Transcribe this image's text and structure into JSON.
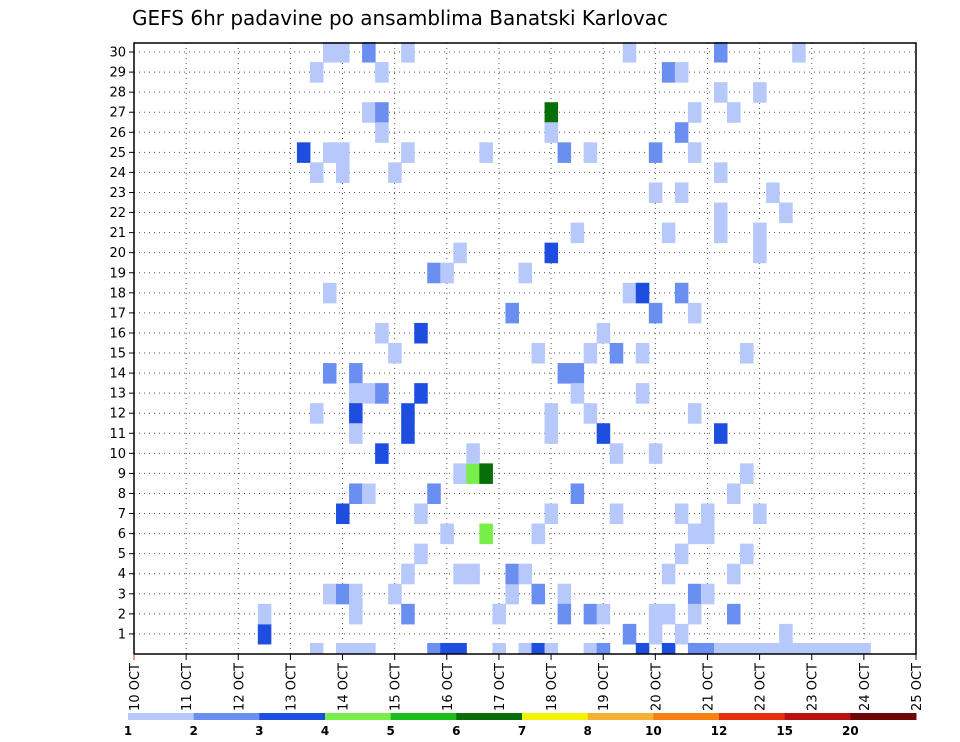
{
  "chart_data": {
    "type": "heatmap",
    "title": "GEFS 6hr padavine po ansamblima Banatski Karlovac",
    "xlabel": "",
    "ylabel": "",
    "x_ticks": [
      "10 OCT",
      "11 OCT",
      "12 OCT",
      "13 OCT",
      "14 OCT",
      "15 OCT",
      "16 OCT",
      "17 OCT",
      "18 OCT",
      "19 OCT",
      "20 OCT",
      "21 OCT",
      "22 OCT",
      "23 OCT",
      "24 OCT",
      "25 OCT"
    ],
    "xlim": [
      0,
      60
    ],
    "y_ticks": [
      1,
      2,
      3,
      4,
      5,
      6,
      7,
      8,
      9,
      10,
      11,
      12,
      13,
      14,
      15,
      16,
      17,
      18,
      19,
      20,
      21,
      22,
      23,
      24,
      25,
      26,
      27,
      28,
      29,
      30
    ],
    "ylim": [
      0,
      30
    ],
    "grid": true,
    "colorbar": {
      "position": "bottom",
      "labels": [
        "1",
        "2",
        "3",
        "4",
        "5",
        "6",
        "7",
        "8",
        "10",
        "12",
        "15",
        "20"
      ],
      "colors": [
        "#b7c8fa",
        "#6a8ff0",
        "#1e4ee0",
        "#78ee4a",
        "#18bf18",
        "#086e08",
        "#f4f400",
        "#f8b030",
        "#f88010",
        "#e83010",
        "#b81010",
        "#6e0606"
      ]
    },
    "cells": [
      {
        "t": 10,
        "m": 1,
        "c": 3
      },
      {
        "t": 10,
        "m": 2,
        "c": 1
      },
      {
        "t": 13,
        "m": 25,
        "c": 3
      },
      {
        "t": 14,
        "m": 29,
        "c": 1
      },
      {
        "t": 14,
        "m": 24,
        "c": 1
      },
      {
        "t": 14,
        "m": 12,
        "c": 1
      },
      {
        "t": 14,
        "m": -1,
        "c": 1
      },
      {
        "t": 15,
        "m": 30,
        "c": 1
      },
      {
        "t": 15,
        "m": 25,
        "c": 1
      },
      {
        "t": 15,
        "m": 18,
        "c": 1
      },
      {
        "t": 15,
        "m": 3,
        "c": 1
      },
      {
        "t": 15,
        "m": 14,
        "c": 2
      },
      {
        "t": 16,
        "m": 30,
        "c": 1
      },
      {
        "t": 16,
        "m": 25,
        "c": 1
      },
      {
        "t": 16,
        "m": 24,
        "c": 1
      },
      {
        "t": 16,
        "m": 3,
        "c": 2
      },
      {
        "t": 16,
        "m": -1,
        "c": 1
      },
      {
        "t": 16,
        "m": 7,
        "c": 3
      },
      {
        "t": 17,
        "m": 14,
        "c": 2
      },
      {
        "t": 17,
        "m": 13,
        "c": 1
      },
      {
        "t": 17,
        "m": 12,
        "c": 3
      },
      {
        "t": 17,
        "m": 11,
        "c": 1
      },
      {
        "t": 17,
        "m": 2,
        "c": 1
      },
      {
        "t": 17,
        "m": 3,
        "c": 1
      },
      {
        "t": 17,
        "m": -1,
        "c": 1
      },
      {
        "t": 17,
        "m": 8,
        "c": 2
      },
      {
        "t": 18,
        "m": 30,
        "c": 2
      },
      {
        "t": 18,
        "m": 27,
        "c": 1
      },
      {
        "t": 18,
        "m": 13,
        "c": 1
      },
      {
        "t": 18,
        "m": 8,
        "c": 1
      },
      {
        "t": 18,
        "m": -1,
        "c": 1
      },
      {
        "t": 19,
        "m": 29,
        "c": 1
      },
      {
        "t": 19,
        "m": 27,
        "c": 2
      },
      {
        "t": 19,
        "m": 16,
        "c": 1
      },
      {
        "t": 19,
        "m": 13,
        "c": 2
      },
      {
        "t": 19,
        "m": 10,
        "c": 3
      },
      {
        "t": 19,
        "m": 26,
        "c": 1
      },
      {
        "t": 20,
        "m": 24,
        "c": 1
      },
      {
        "t": 20,
        "m": 3,
        "c": 1
      },
      {
        "t": 20,
        "m": 15,
        "c": 1
      },
      {
        "t": 21,
        "m": 30,
        "c": 1
      },
      {
        "t": 21,
        "m": 25,
        "c": 1
      },
      {
        "t": 21,
        "m": 12,
        "c": 3
      },
      {
        "t": 21,
        "m": 11,
        "c": 3
      },
      {
        "t": 21,
        "m": 4,
        "c": 1
      },
      {
        "t": 21,
        "m": 2,
        "c": 2
      },
      {
        "t": 22,
        "m": 16,
        "c": 3
      },
      {
        "t": 22,
        "m": 13,
        "c": 3
      },
      {
        "t": 22,
        "m": 5,
        "c": 1
      },
      {
        "t": 22,
        "m": 7,
        "c": 1
      },
      {
        "t": 23,
        "m": 19,
        "c": 2
      },
      {
        "t": 23,
        "m": -1,
        "c": 2
      },
      {
        "t": 23,
        "m": 8,
        "c": 2
      },
      {
        "t": 24,
        "m": 19,
        "c": 1
      },
      {
        "t": 24,
        "m": 6,
        "c": 1
      },
      {
        "t": 24,
        "m": -1,
        "c": 3
      },
      {
        "t": 25,
        "m": 20,
        "c": 1
      },
      {
        "t": 25,
        "m": 4,
        "c": 1
      },
      {
        "t": 25,
        "m": -1,
        "c": 3
      },
      {
        "t": 25,
        "m": 9,
        "c": 1
      },
      {
        "t": 26,
        "m": 9,
        "c": 4
      },
      {
        "t": 26,
        "m": 4,
        "c": 1
      },
      {
        "t": 26,
        "m": 10,
        "c": 1
      },
      {
        "t": 27,
        "m": 6,
        "c": 4
      },
      {
        "t": 27,
        "m": 9,
        "c": 6
      },
      {
        "t": 27,
        "m": 25,
        "c": 1
      },
      {
        "t": 28,
        "m": 2,
        "c": 1
      },
      {
        "t": 28,
        "m": -1,
        "c": 1
      },
      {
        "t": 29,
        "m": 3,
        "c": 1
      },
      {
        "t": 29,
        "m": 4,
        "c": 2
      },
      {
        "t": 29,
        "m": 17,
        "c": 2
      },
      {
        "t": 30,
        "m": -1,
        "c": 1
      },
      {
        "t": 30,
        "m": 4,
        "c": 1
      },
      {
        "t": 30,
        "m": 19,
        "c": 1
      },
      {
        "t": 31,
        "m": -1,
        "c": 3
      },
      {
        "t": 31,
        "m": 3,
        "c": 2
      },
      {
        "t": 31,
        "m": 15,
        "c": 1
      },
      {
        "t": 31,
        "m": 6,
        "c": 1
      },
      {
        "t": 32,
        "m": 11,
        "c": 1
      },
      {
        "t": 32,
        "m": 12,
        "c": 1
      },
      {
        "t": 32,
        "m": 20,
        "c": 3
      },
      {
        "t": 32,
        "m": -1,
        "c": 1
      },
      {
        "t": 32,
        "m": 7,
        "c": 1
      },
      {
        "t": 32,
        "m": 27,
        "c": 6
      },
      {
        "t": 32,
        "m": 26,
        "c": 1
      },
      {
        "t": 33,
        "m": 3,
        "c": 1
      },
      {
        "t": 33,
        "m": 25,
        "c": 2
      },
      {
        "t": 33,
        "m": 2,
        "c": 2
      },
      {
        "t": 33,
        "m": 14,
        "c": 2
      },
      {
        "t": 34,
        "m": 14,
        "c": 2
      },
      {
        "t": 34,
        "m": 21,
        "c": 1
      },
      {
        "t": 34,
        "m": 8,
        "c": 2
      },
      {
        "t": 34,
        "m": 13,
        "c": 1
      },
      {
        "t": 35,
        "m": 2,
        "c": 2
      },
      {
        "t": 35,
        "m": 25,
        "c": 1
      },
      {
        "t": 35,
        "m": 12,
        "c": 1
      },
      {
        "t": 35,
        "m": 15,
        "c": 1
      },
      {
        "t": 35,
        "m": -1,
        "c": 1
      },
      {
        "t": 36,
        "m": 16,
        "c": 1
      },
      {
        "t": 36,
        "m": 11,
        "c": 3
      },
      {
        "t": 36,
        "m": 2,
        "c": 1
      },
      {
        "t": 36,
        "m": -1,
        "c": 2
      },
      {
        "t": 37,
        "m": 15,
        "c": 2
      },
      {
        "t": 37,
        "m": 7,
        "c": 1
      },
      {
        "t": 37,
        "m": 10,
        "c": 1
      },
      {
        "t": 38,
        "m": 18,
        "c": 1
      },
      {
        "t": 38,
        "m": 1,
        "c": 2
      },
      {
        "t": 38,
        "m": 30,
        "c": 1
      },
      {
        "t": 39,
        "m": 15,
        "c": 1
      },
      {
        "t": 39,
        "m": 13,
        "c": 1
      },
      {
        "t": 39,
        "m": -1,
        "c": 3
      },
      {
        "t": 39,
        "m": 18,
        "c": 3
      },
      {
        "t": 40,
        "m": 10,
        "c": 1
      },
      {
        "t": 40,
        "m": 25,
        "c": 2
      },
      {
        "t": 40,
        "m": 2,
        "c": 1
      },
      {
        "t": 40,
        "m": 17,
        "c": 2
      },
      {
        "t": 40,
        "m": 23,
        "c": 1
      },
      {
        "t": 40,
        "m": 1,
        "c": 1
      },
      {
        "t": 41,
        "m": 21,
        "c": 1
      },
      {
        "t": 41,
        "m": 29,
        "c": 2
      },
      {
        "t": 41,
        "m": -1,
        "c": 3
      },
      {
        "t": 41,
        "m": 4,
        "c": 1
      },
      {
        "t": 41,
        "m": 2,
        "c": 1
      },
      {
        "t": 42,
        "m": 23,
        "c": 1
      },
      {
        "t": 42,
        "m": 7,
        "c": 1
      },
      {
        "t": 42,
        "m": 18,
        "c": 2
      },
      {
        "t": 42,
        "m": 1,
        "c": 1
      },
      {
        "t": 42,
        "m": 5,
        "c": 1
      },
      {
        "t": 42,
        "m": 26,
        "c": 2
      },
      {
        "t": 42,
        "m": 29,
        "c": 1
      },
      {
        "t": 43,
        "m": 17,
        "c": 1
      },
      {
        "t": 43,
        "m": 27,
        "c": 1
      },
      {
        "t": 43,
        "m": 3,
        "c": 2
      },
      {
        "t": 43,
        "m": 12,
        "c": 1
      },
      {
        "t": 43,
        "m": 25,
        "c": 1
      },
      {
        "t": 43,
        "m": 2,
        "c": 1
      },
      {
        "t": 43,
        "m": -1,
        "c": 2
      },
      {
        "t": 43,
        "m": 6,
        "c": 1
      },
      {
        "t": 44,
        "m": 3,
        "c": 1
      },
      {
        "t": 44,
        "m": 6,
        "c": 1
      },
      {
        "t": 44,
        "m": 7,
        "c": 1
      },
      {
        "t": 44,
        "m": -1,
        "c": 2
      },
      {
        "t": 45,
        "m": 22,
        "c": 1
      },
      {
        "t": 45,
        "m": 21,
        "c": 1
      },
      {
        "t": 45,
        "m": 24,
        "c": 1
      },
      {
        "t": 45,
        "m": -1,
        "c": 1
      },
      {
        "t": 45,
        "m": 11,
        "c": 3
      },
      {
        "t": 45,
        "m": 30,
        "c": 2
      },
      {
        "t": 45,
        "m": 28,
        "c": 1
      },
      {
        "t": 46,
        "m": 2,
        "c": 2
      },
      {
        "t": 46,
        "m": -1,
        "c": 1
      },
      {
        "t": 46,
        "m": 4,
        "c": 1
      },
      {
        "t": 46,
        "m": 27,
        "c": 1
      },
      {
        "t": 46,
        "m": 8,
        "c": 1
      },
      {
        "t": 47,
        "m": -1,
        "c": 1
      },
      {
        "t": 47,
        "m": 15,
        "c": 1
      },
      {
        "t": 47,
        "m": 9,
        "c": 1
      },
      {
        "t": 47,
        "m": 5,
        "c": 1
      },
      {
        "t": 48,
        "m": 21,
        "c": 1
      },
      {
        "t": 48,
        "m": -1,
        "c": 1
      },
      {
        "t": 48,
        "m": 7,
        "c": 1
      },
      {
        "t": 48,
        "m": 20,
        "c": 1
      },
      {
        "t": 48,
        "m": 28,
        "c": 1
      },
      {
        "t": 49,
        "m": -1,
        "c": 1
      },
      {
        "t": 49,
        "m": 23,
        "c": 1
      },
      {
        "t": 50,
        "m": 1,
        "c": 1
      },
      {
        "t": 50,
        "m": 22,
        "c": 1
      },
      {
        "t": 50,
        "m": -1,
        "c": 1
      },
      {
        "t": 51,
        "m": 30,
        "c": 1
      },
      {
        "t": 51,
        "m": -1,
        "c": 1
      },
      {
        "t": 52,
        "m": -1,
        "c": 1
      },
      {
        "t": 53,
        "m": -1,
        "c": 1
      },
      {
        "t": 54,
        "m": -1,
        "c": 1
      },
      {
        "t": 55,
        "m": -1,
        "c": 1
      },
      {
        "t": 56,
        "m": -1,
        "c": 1
      }
    ]
  }
}
